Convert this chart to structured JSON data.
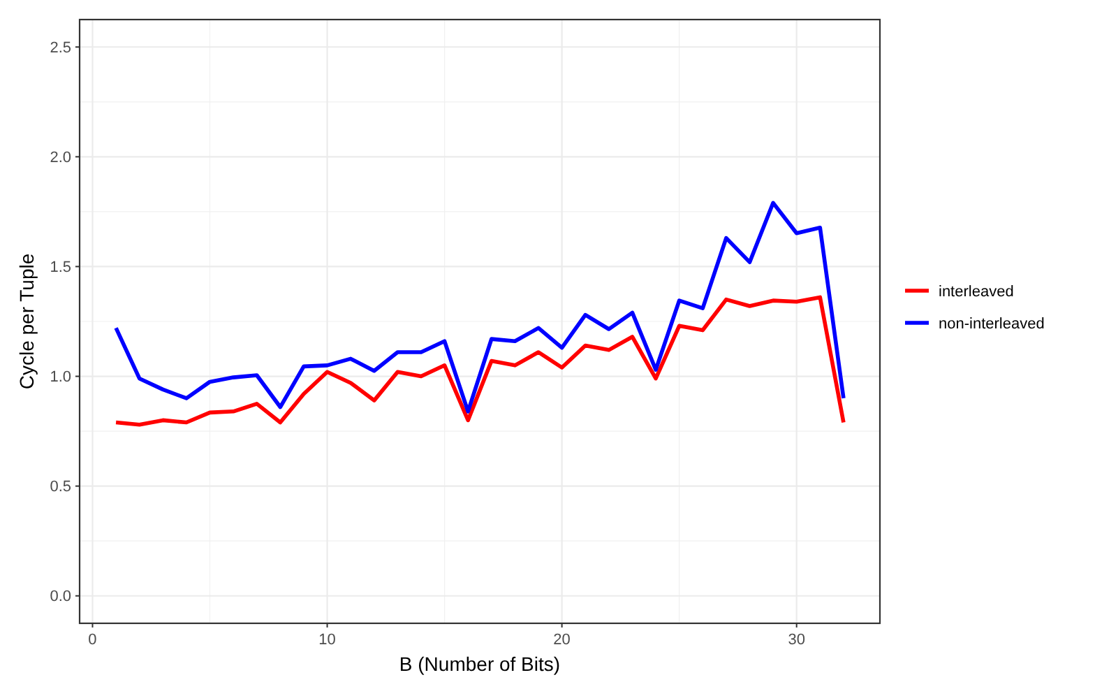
{
  "chart_data": {
    "type": "line",
    "xlabel": "B (Number of Bits)",
    "ylabel": "Cycle per Tuple",
    "x": [
      1,
      2,
      3,
      4,
      5,
      6,
      7,
      8,
      9,
      10,
      11,
      12,
      13,
      14,
      15,
      16,
      17,
      18,
      19,
      20,
      21,
      22,
      23,
      24,
      25,
      26,
      27,
      28,
      29,
      30,
      31,
      32
    ],
    "series": [
      {
        "name": "interleaved",
        "color": "#ff0000",
        "values": [
          0.79,
          0.78,
          0.8,
          0.79,
          0.835,
          0.84,
          0.875,
          0.79,
          0.92,
          1.02,
          0.97,
          0.89,
          1.02,
          1.0,
          1.05,
          0.8,
          1.07,
          1.05,
          1.11,
          1.04,
          1.14,
          1.12,
          1.18,
          0.99,
          1.23,
          1.21,
          1.35,
          1.32,
          1.345,
          1.34,
          1.36,
          0.79
        ]
      },
      {
        "name": "non-interleaved",
        "color": "#0000ff",
        "values": [
          1.22,
          0.99,
          0.94,
          0.9,
          0.975,
          0.995,
          1.005,
          0.86,
          1.045,
          1.05,
          1.08,
          1.025,
          1.11,
          1.11,
          1.16,
          0.84,
          1.17,
          1.16,
          1.22,
          1.13,
          1.28,
          1.215,
          1.29,
          1.03,
          1.345,
          1.31,
          1.63,
          1.52,
          1.79,
          1.652,
          1.677,
          0.9
        ]
      }
    ],
    "xlim": [
      -0.55,
      33.55
    ],
    "xticks": [
      0,
      10,
      20,
      30
    ],
    "ylim": [
      -0.125,
      2.625
    ],
    "yticks": [
      {
        "value": 0,
        "label": "0.0"
      },
      {
        "value": 0.5,
        "label": "0.5"
      },
      {
        "value": 1,
        "label": "1.0"
      },
      {
        "value": 1.5,
        "label": "1.5"
      },
      {
        "value": 2,
        "label": "2.0"
      },
      {
        "value": 2.5,
        "label": "2.5"
      }
    ],
    "grid": true,
    "legend": "right",
    "marker": "none",
    "line_style": "solid"
  }
}
